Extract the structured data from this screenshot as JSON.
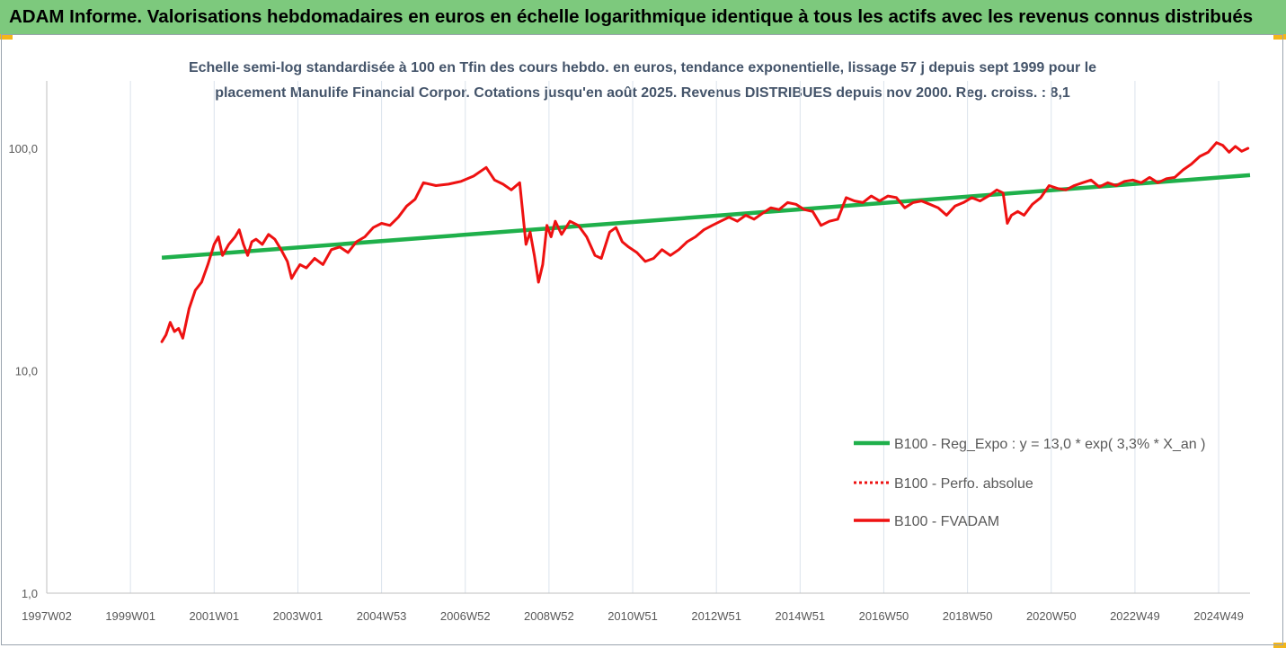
{
  "header": {
    "title": "ADAM Informe. Valorisations hebdomadaires en euros en échelle logarithmique identique à tous les actifs avec les revenus connus distribués"
  },
  "colors": {
    "banner": "#7dc97d",
    "corner": "#f3b61a",
    "trend": "#1fb04b",
    "series": "#ee1111"
  },
  "chart_data": {
    "type": "line",
    "title": "",
    "subtitle_lines": [
      "Echelle semi-log standardisée à 100 en Tfin des cours hebdo. en euros, tendance exponentielle, lissage 57 j depuis sept 1999 pour le",
      "placement Manulife Financial Corpor. Cotations jusqu'en août 2025. Revenus DISTRIBUES depuis nov 2000. Reg. croiss. : 8,1"
    ],
    "y_scale": "log",
    "ylim": [
      1,
      200
    ],
    "y_ticks": [
      {
        "value": 1,
        "label": "1,0"
      },
      {
        "value": 10,
        "label": "10,0"
      },
      {
        "value": 100,
        "label": "100,0"
      }
    ],
    "xlim": [
      1997.0,
      2025.75
    ],
    "x_ticks": [
      {
        "value": 1997.0,
        "label": "1997W02"
      },
      {
        "value": 1999.0,
        "label": "1999W01"
      },
      {
        "value": 2001.0,
        "label": "2001W01"
      },
      {
        "value": 2003.0,
        "label": "2003W01"
      },
      {
        "value": 2005.0,
        "label": "2004W53"
      },
      {
        "value": 2007.0,
        "label": "2006W52"
      },
      {
        "value": 2009.0,
        "label": "2008W52"
      },
      {
        "value": 2011.0,
        "label": "2010W51"
      },
      {
        "value": 2013.0,
        "label": "2012W51"
      },
      {
        "value": 2015.0,
        "label": "2014W51"
      },
      {
        "value": 2017.0,
        "label": "2016W50"
      },
      {
        "value": 2019.0,
        "label": "2018W50"
      },
      {
        "value": 2021.0,
        "label": "2020W50"
      },
      {
        "value": 2023.0,
        "label": "2022W49"
      },
      {
        "value": 2025.0,
        "label": "2024W49"
      }
    ],
    "grid": "vertical",
    "legend_position": "right-bottom",
    "series": [
      {
        "name": "B100 - Reg_Expo : y = 13,0 * exp( 3,3% *  X_an )",
        "style": "solid-thick",
        "color": "#1fb04b",
        "x": [
          1999.75,
          2025.75
        ],
        "y": [
          32.2,
          75.7
        ]
      },
      {
        "name": "B100 - Perfo. absolue",
        "style": "dotted",
        "color": "#ee1111",
        "x": [],
        "y": []
      },
      {
        "name": "B100 - FVADAM",
        "style": "solid",
        "color": "#ee1111",
        "x": [
          1999.75,
          1999.85,
          1999.95,
          2000.05,
          2000.15,
          2000.25,
          2000.4,
          2000.55,
          2000.7,
          2000.85,
          2001.0,
          2001.1,
          2001.2,
          2001.35,
          2001.5,
          2001.6,
          2001.7,
          2001.8,
          2001.9,
          2002.0,
          2002.15,
          2002.3,
          2002.45,
          2002.6,
          2002.75,
          2002.85,
          2002.95,
          2003.05,
          2003.2,
          2003.4,
          2003.6,
          2003.8,
          2004.0,
          2004.2,
          2004.4,
          2004.6,
          2004.8,
          2005.0,
          2005.2,
          2005.4,
          2005.6,
          2005.8,
          2006.0,
          2006.3,
          2006.6,
          2006.9,
          2007.2,
          2007.5,
          2007.7,
          2007.9,
          2008.1,
          2008.3,
          2008.45,
          2008.55,
          2008.65,
          2008.75,
          2008.85,
          2008.95,
          2009.05,
          2009.15,
          2009.3,
          2009.5,
          2009.7,
          2009.9,
          2010.1,
          2010.25,
          2010.45,
          2010.6,
          2010.75,
          2010.9,
          2011.1,
          2011.3,
          2011.5,
          2011.7,
          2011.9,
          2012.1,
          2012.3,
          2012.5,
          2012.7,
          2012.9,
          2013.1,
          2013.3,
          2013.5,
          2013.7,
          2013.9,
          2014.1,
          2014.3,
          2014.5,
          2014.7,
          2014.9,
          2015.1,
          2015.3,
          2015.5,
          2015.7,
          2015.9,
          2016.1,
          2016.3,
          2016.5,
          2016.7,
          2016.9,
          2017.1,
          2017.3,
          2017.5,
          2017.7,
          2017.9,
          2018.1,
          2018.3,
          2018.5,
          2018.7,
          2018.9,
          2019.1,
          2019.3,
          2019.5,
          2019.7,
          2019.85,
          2019.95,
          2020.05,
          2020.2,
          2020.35,
          2020.55,
          2020.75,
          2020.95,
          2021.15,
          2021.35,
          2021.55,
          2021.75,
          2021.95,
          2022.15,
          2022.35,
          2022.55,
          2022.75,
          2022.95,
          2023.15,
          2023.35,
          2023.55,
          2023.75,
          2023.95,
          2024.15,
          2024.35,
          2024.55,
          2024.75,
          2024.95,
          2025.1,
          2025.25,
          2025.4,
          2025.55,
          2025.7
        ],
        "y": [
          13.5,
          14.5,
          16.5,
          15.0,
          15.5,
          14.0,
          19.0,
          23.0,
          25.0,
          30.0,
          37.0,
          40.0,
          33.0,
          37.0,
          40.0,
          43.0,
          37.0,
          33.0,
          38.0,
          39.0,
          37.0,
          41.0,
          39.0,
          35.0,
          31.0,
          26.0,
          28.0,
          30.0,
          29.0,
          32.0,
          30.0,
          35.0,
          36.0,
          34.0,
          38.0,
          40.0,
          44.0,
          46.0,
          45.0,
          49.0,
          55.0,
          59.0,
          70.0,
          68.0,
          69.0,
          71.0,
          75.0,
          82.0,
          72.0,
          69.0,
          65.0,
          70.0,
          37.0,
          42.0,
          33.0,
          25.0,
          30.0,
          45.0,
          40.0,
          47.0,
          41.0,
          47.0,
          45.0,
          40.0,
          33.0,
          32.0,
          42.0,
          44.0,
          38.0,
          36.0,
          34.0,
          31.0,
          32.0,
          35.0,
          33.0,
          35.0,
          38.0,
          40.0,
          43.0,
          45.0,
          47.0,
          49.0,
          47.0,
          50.0,
          48.0,
          51.0,
          54.0,
          53.0,
          57.0,
          56.0,
          53.0,
          52.0,
          45.0,
          47.0,
          48.0,
          60.0,
          58.0,
          57.0,
          61.0,
          58.0,
          61.0,
          60.0,
          54.0,
          57.0,
          58.0,
          56.0,
          54.0,
          50.0,
          55.0,
          57.0,
          60.0,
          58.0,
          61.0,
          65.0,
          63.0,
          46.0,
          50.0,
          52.0,
          50.0,
          56.0,
          60.0,
          68.0,
          66.0,
          65.0,
          68.0,
          70.0,
          72.0,
          67.0,
          70.0,
          68.0,
          71.0,
          72.0,
          70.0,
          74.0,
          70.0,
          73.0,
          74.0,
          80.0,
          85.0,
          92.0,
          96.0,
          106.0,
          103.0,
          96.0,
          102.0,
          97.0,
          100.0
        ]
      }
    ]
  }
}
